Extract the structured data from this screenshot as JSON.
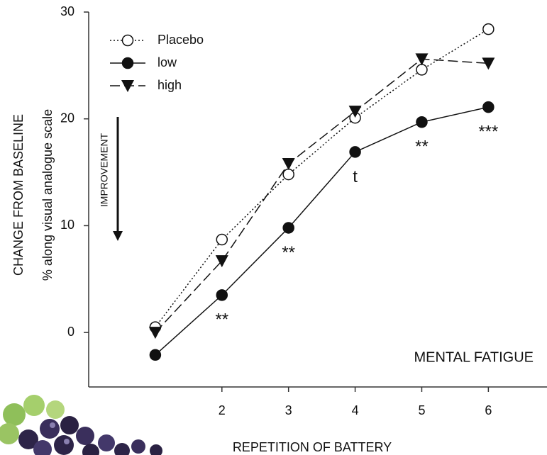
{
  "chart_data": {
    "type": "line",
    "x_label": "REPETITION OF BATTERY",
    "y_label": "CHANGE FROM BASELINE",
    "y_sublabel": "% along visual analogue scale",
    "panel_label": "MENTAL FATIGUE",
    "direction_label": "IMPROVEMENT",
    "x": [
      1,
      2,
      3,
      4,
      5,
      6
    ],
    "xlim": [
      0,
      6.88
    ],
    "xticks": [
      2,
      3,
      4,
      5,
      6
    ],
    "ylim": [
      -5.1,
      30
    ],
    "yticks": [
      0,
      10,
      20,
      30
    ],
    "legend": "top-left",
    "series": [
      {
        "name": "Placebo",
        "color": "#111111",
        "line_style": "dotted",
        "marker": "open-circle",
        "values": [
          0.5,
          8.7,
          14.8,
          20.1,
          24.6,
          28.4
        ]
      },
      {
        "name": "low",
        "color": "#111111",
        "line_style": "solid",
        "marker": "filled-circle",
        "values": [
          -2.1,
          3.5,
          9.8,
          16.9,
          19.7,
          21.1
        ]
      },
      {
        "name": "high",
        "color": "#111111",
        "line_style": "dashed",
        "marker": "triangle-down",
        "values": [
          0,
          6.7,
          15.8,
          20.7,
          25.6,
          25.2
        ]
      }
    ],
    "annotations": [
      {
        "text": "**",
        "x": 2
      },
      {
        "text": "**",
        "x": 3
      },
      {
        "text": "t",
        "x": 4
      },
      {
        "text": "**",
        "x": 5
      },
      {
        "text": "***",
        "x": 6
      }
    ]
  }
}
